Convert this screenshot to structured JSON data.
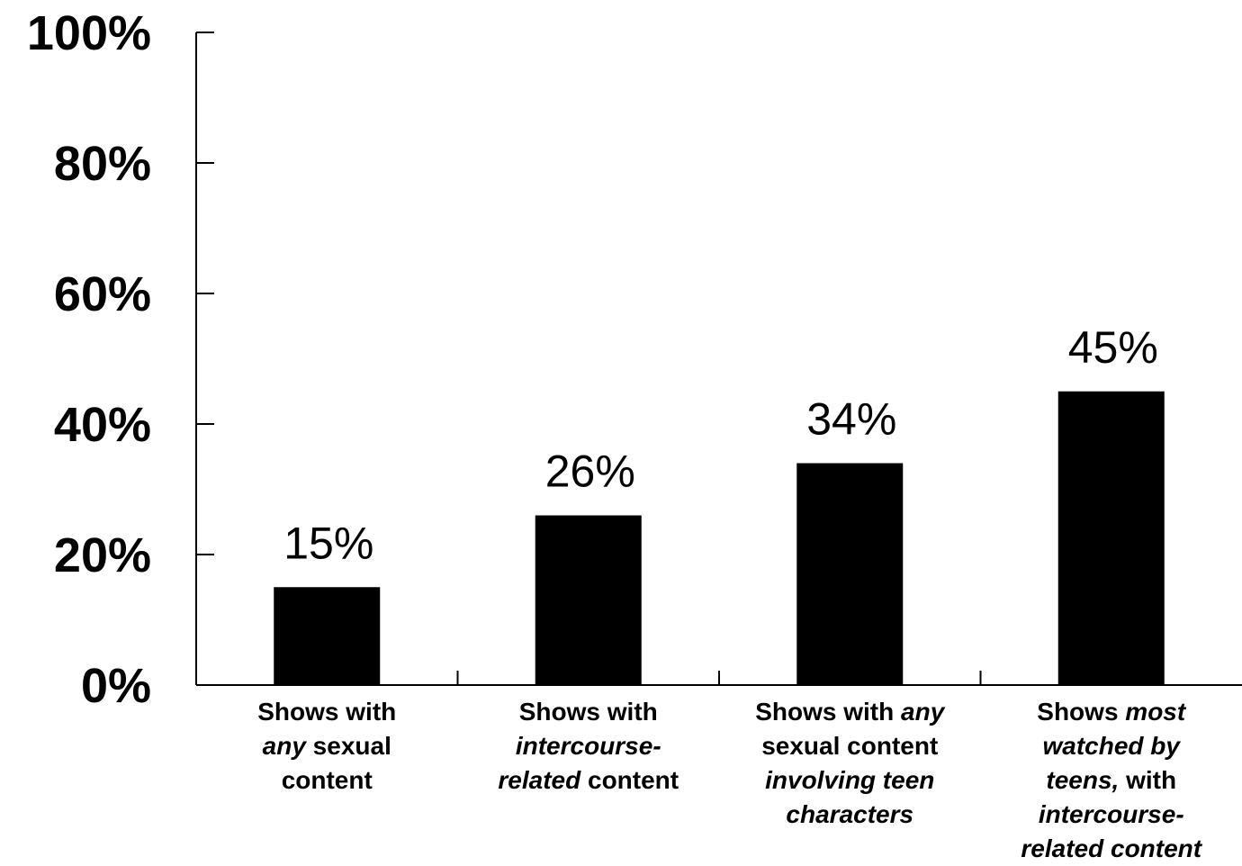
{
  "chart_data": {
    "type": "bar",
    "title": "",
    "xlabel": "",
    "ylabel": "",
    "ylim": [
      0,
      100
    ],
    "yticks": [
      {
        "value": 0,
        "label": "0%"
      },
      {
        "value": 20,
        "label": "20%"
      },
      {
        "value": 40,
        "label": "40%"
      },
      {
        "value": 60,
        "label": "60%"
      },
      {
        "value": 80,
        "label": "80%"
      },
      {
        "value": 100,
        "label": "100%"
      }
    ],
    "categories": [
      "Shows with any sexual content",
      "Shows with intercourse-related content",
      "Shows with any sexual content involving teen characters",
      "Shows most watched by teens, with intercourse-related content"
    ],
    "category_label_lines": [
      [
        [
          {
            "t": "Shows with",
            "i": false
          }
        ],
        [
          {
            "t": "any",
            "i": true
          },
          {
            "t": " sexual",
            "i": false
          }
        ],
        [
          {
            "t": "content",
            "i": false
          }
        ]
      ],
      [
        [
          {
            "t": "Shows with",
            "i": false
          }
        ],
        [
          {
            "t": "intercourse-",
            "i": true
          }
        ],
        [
          {
            "t": "related",
            "i": true
          },
          {
            "t": " content",
            "i": false
          }
        ]
      ],
      [
        [
          {
            "t": "Shows with ",
            "i": false
          },
          {
            "t": "any",
            "i": true
          }
        ],
        [
          {
            "t": "sexual content",
            "i": false
          }
        ],
        [
          {
            "t": "involving teen",
            "i": true
          }
        ],
        [
          {
            "t": "characters",
            "i": true
          }
        ]
      ],
      [
        [
          {
            "t": "Shows ",
            "i": false
          },
          {
            "t": "most",
            "i": true
          }
        ],
        [
          {
            "t": "watched by",
            "i": true
          }
        ],
        [
          {
            "t": "teens,",
            "i": true
          },
          {
            "t": " with",
            "i": false
          }
        ],
        [
          {
            "t": "intercourse-",
            "i": true
          }
        ],
        [
          {
            "t": "related content",
            "i": true
          }
        ]
      ]
    ],
    "values": [
      15,
      26,
      34,
      45
    ],
    "value_labels": [
      "15%",
      "26%",
      "34%",
      "45%"
    ],
    "colors": {
      "bar": "#000000",
      "axis": "#000000"
    },
    "grid": false,
    "legend": "none"
  }
}
